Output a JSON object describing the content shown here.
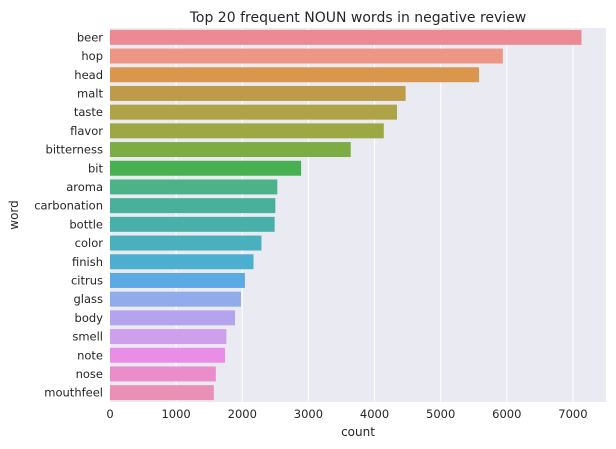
{
  "chart_data": {
    "type": "bar",
    "orientation": "horizontal",
    "title": "Top 20 frequent NOUN words in negative review",
    "xlabel": "count",
    "ylabel": "word",
    "xlim": [
      0,
      7500
    ],
    "xticks": [
      0,
      1000,
      2000,
      3000,
      4000,
      5000,
      6000,
      7000
    ],
    "grid": true,
    "background": "#EAEAF2",
    "categories": [
      "beer",
      "hop",
      "head",
      "malt",
      "taste",
      "flavor",
      "bitterness",
      "bit",
      "aroma",
      "carbonation",
      "bottle",
      "color",
      "finish",
      "citrus",
      "glass",
      "body",
      "smell",
      "note",
      "nose",
      "mouthfeel"
    ],
    "values": [
      7130,
      5940,
      5580,
      4470,
      4340,
      4140,
      3640,
      2890,
      2530,
      2500,
      2490,
      2290,
      2170,
      2040,
      1980,
      1890,
      1760,
      1740,
      1600,
      1570
    ],
    "colors": [
      "#EB8A92",
      "#EC9683",
      "#D9964C",
      "#BF9A48",
      "#AEA346",
      "#9BA843",
      "#7BAD44",
      "#48B051",
      "#4CB287",
      "#49B19B",
      "#48B0A8",
      "#4AB0BD",
      "#4DAFD0",
      "#5BAAE4",
      "#90ACEA",
      "#B4A3ED",
      "#CE9FEA",
      "#E98DE7",
      "#EB8DCB",
      "#E990B4"
    ]
  }
}
